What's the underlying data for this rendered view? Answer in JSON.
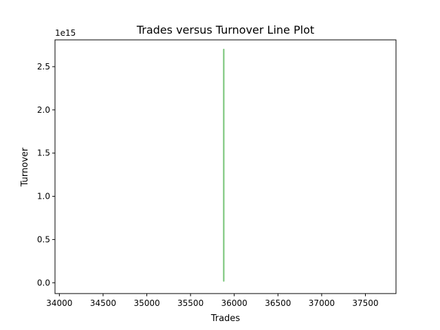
{
  "chart_data": {
    "type": "line",
    "title": "Trades versus Turnover Line Plot",
    "xlabel": "Trades",
    "ylabel": "Turnover",
    "y_offset_label": "1e15",
    "y_multiplier": 1000000000000000.0,
    "xlim": [
      33950,
      37850
    ],
    "ylim": [
      -0.125,
      2.81
    ],
    "x_ticks": [
      34000,
      34500,
      35000,
      35500,
      36000,
      36500,
      37000,
      37500
    ],
    "x_tick_labels": [
      "34000",
      "34500",
      "35000",
      "35500",
      "36000",
      "36500",
      "37000",
      "37500"
    ],
    "y_ticks": [
      0.0,
      0.5,
      1.0,
      1.5,
      2.0,
      2.5
    ],
    "y_tick_labels": [
      "0.0",
      "0.5",
      "1.0",
      "1.5",
      "2.0",
      "2.5"
    ],
    "grid": false,
    "series": [
      {
        "color": "#5cb85c",
        "points": [
          {
            "x": 35880,
            "y": 2.7
          },
          {
            "x": 35880,
            "y": 0.02
          }
        ]
      }
    ]
  }
}
